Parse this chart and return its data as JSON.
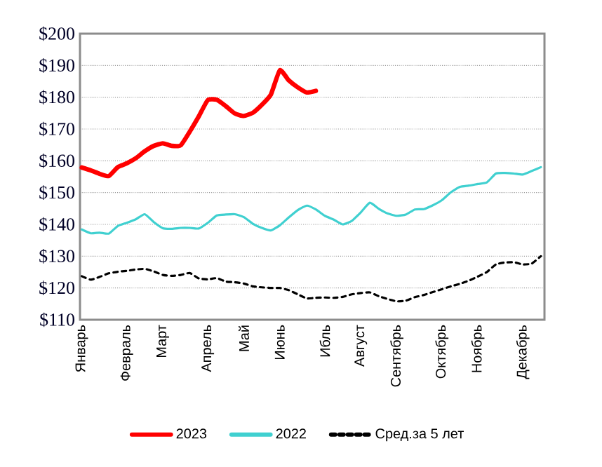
{
  "chart_data": {
    "type": "line",
    "ylim": [
      110,
      200
    ],
    "categories": [
      "Январь",
      null,
      null,
      null,
      null,
      "Февраль",
      null,
      null,
      null,
      "Март",
      null,
      null,
      null,
      null,
      "Апрель",
      null,
      null,
      null,
      "Май",
      null,
      null,
      null,
      "Июнь",
      null,
      null,
      null,
      null,
      "Ибль",
      null,
      null,
      null,
      "Август",
      null,
      null,
      null,
      "Сентябрь",
      null,
      null,
      null,
      null,
      "Октябрь",
      null,
      null,
      null,
      "Ноябрь",
      null,
      null,
      null,
      null,
      "Декабрь",
      null,
      null
    ],
    "yticks": [
      {
        "value": 110,
        "label": "$110"
      },
      {
        "value": 120,
        "label": "$120"
      },
      {
        "value": 130,
        "label": "$130"
      },
      {
        "value": 140,
        "label": "$140"
      },
      {
        "value": 150,
        "label": "$150"
      },
      {
        "value": 160,
        "label": "$160"
      },
      {
        "value": 170,
        "label": "$170"
      },
      {
        "value": 180,
        "label": "$180"
      },
      {
        "value": 190,
        "label": "$190"
      },
      {
        "value": 200,
        "label": "$200"
      }
    ],
    "grid": "y",
    "legend": "bottom",
    "marker": "none",
    "series": [
      {
        "name": "2023",
        "color": "#ff0000",
        "line_style": "solid",
        "values": [
          157.9,
          157.0,
          155.9,
          155.2,
          158.0,
          159.2,
          160.8,
          163.0,
          164.7,
          165.5,
          164.7,
          164.9,
          169.2,
          174.0,
          179.1,
          179.2,
          177.2,
          174.9,
          174.1,
          175.1,
          177.6,
          180.8,
          188.5,
          185.3,
          183.1,
          181.5,
          182.0,
          null,
          null,
          null,
          null,
          null,
          null,
          null,
          null,
          null,
          null,
          null,
          null,
          null,
          null,
          null,
          null,
          null,
          null,
          null,
          null,
          null,
          null,
          null,
          null,
          null
        ]
      },
      {
        "name": "2022",
        "color": "#40d0d0",
        "line_style": "solid",
        "values": [
          138.4,
          137.2,
          137.4,
          137.1,
          139.5,
          140.5,
          141.6,
          143.2,
          140.7,
          138.8,
          138.6,
          138.9,
          138.9,
          138.7,
          140.5,
          142.8,
          143.1,
          143.2,
          142.3,
          140.2,
          138.9,
          138.1,
          139.7,
          142.2,
          144.5,
          145.9,
          144.7,
          142.7,
          141.5,
          140.0,
          141.1,
          143.8,
          146.8,
          144.9,
          143.4,
          142.7,
          143.1,
          144.7,
          144.8,
          146.0,
          147.6,
          150.1,
          151.8,
          152.2,
          152.7,
          153.2,
          156.0,
          156.2,
          156.0,
          155.7,
          156.8,
          158.0
        ]
      },
      {
        "name": "Сред.за 5 лет",
        "color": "#000000",
        "line_style": "dashed",
        "values": [
          123.7,
          122.6,
          123.5,
          124.6,
          125.1,
          125.4,
          125.8,
          126.0,
          125.2,
          124.1,
          123.8,
          124.1,
          124.7,
          123.0,
          122.7,
          123.1,
          122.0,
          121.8,
          121.4,
          120.5,
          120.2,
          120.0,
          120.0,
          119.3,
          118.0,
          116.7,
          116.9,
          117.0,
          116.9,
          117.2,
          118.0,
          118.4,
          118.6,
          117.4,
          116.5,
          115.8,
          116.0,
          117.1,
          117.8,
          118.7,
          119.6,
          120.5,
          121.3,
          122.3,
          123.6,
          125.0,
          127.4,
          128.0,
          128.1,
          127.4,
          127.7,
          130.0
        ]
      }
    ]
  }
}
